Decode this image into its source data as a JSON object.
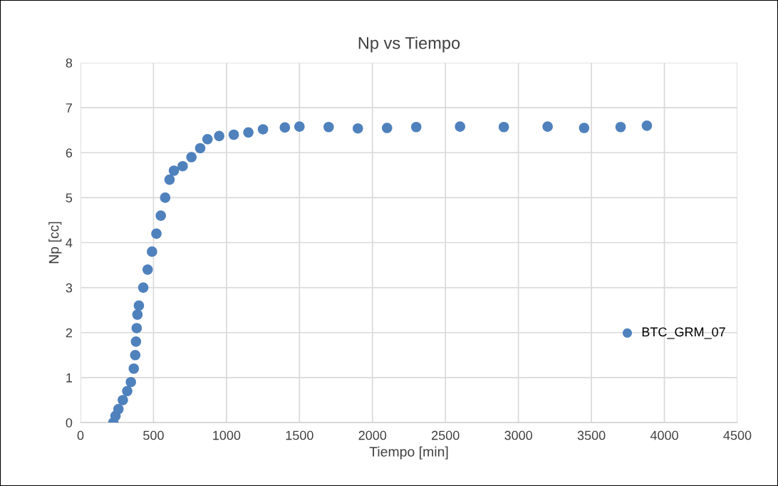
{
  "chart_data": {
    "type": "scatter",
    "title": "Np vs Tiempo",
    "xlabel": "Tiempo [min]",
    "ylabel": "Np [cc]",
    "xlim": [
      0,
      4500
    ],
    "xticks": [
      0,
      500,
      1000,
      1500,
      2000,
      2500,
      3000,
      3500,
      4000,
      4500
    ],
    "ylim": [
      0,
      8
    ],
    "yticks": [
      0,
      1,
      2,
      3,
      4,
      5,
      6,
      7,
      8
    ],
    "grid": true,
    "legend": "lower right",
    "marker": "circle",
    "series": [
      {
        "name": "BTC_GRM_07",
        "color": "#4f81bd",
        "x": [
          225,
          240,
          260,
          290,
          320,
          345,
          365,
          375,
          380,
          385,
          390,
          400,
          430,
          460,
          490,
          520,
          550,
          580,
          610,
          640,
          700,
          760,
          820,
          870,
          950,
          1050,
          1150,
          1250,
          1400,
          1500,
          1700,
          1900,
          2100,
          2300,
          2600,
          2900,
          3200,
          3450,
          3700,
          3880
        ],
        "values": [
          0,
          0.15,
          0.3,
          0.5,
          0.7,
          0.9,
          1.2,
          1.5,
          1.8,
          2.1,
          2.4,
          2.6,
          3.0,
          3.4,
          3.8,
          4.2,
          4.6,
          5.0,
          5.4,
          5.6,
          5.7,
          5.9,
          6.1,
          6.3,
          6.37,
          6.4,
          6.45,
          6.52,
          6.56,
          6.58,
          6.57,
          6.54,
          6.55,
          6.57,
          6.58,
          6.57,
          6.58,
          6.55,
          6.57,
          6.6
        ]
      }
    ]
  }
}
